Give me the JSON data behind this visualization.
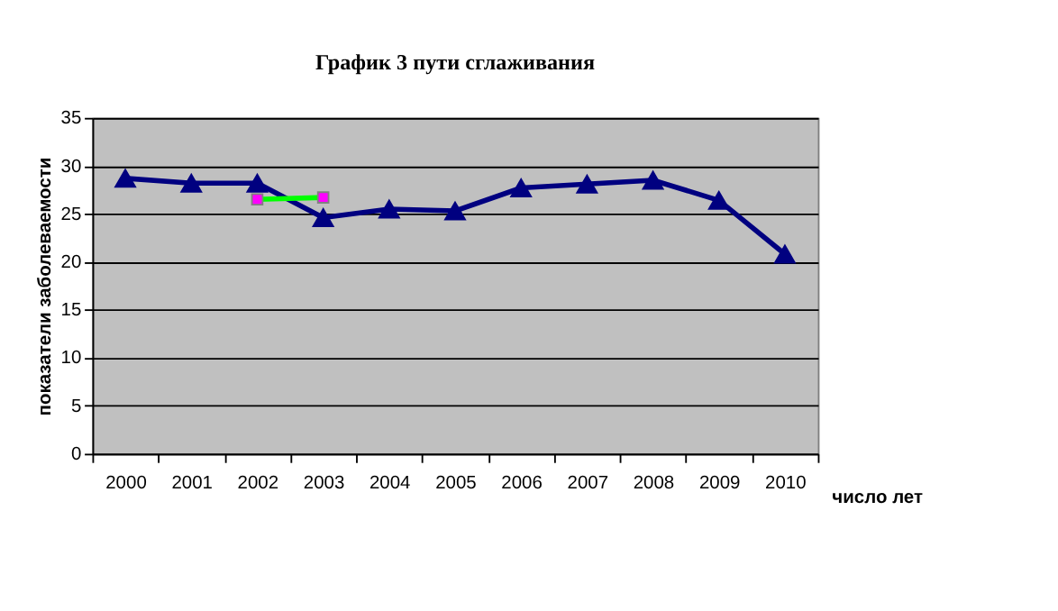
{
  "chart_data": {
    "type": "line",
    "title": "График 3 пути сглаживания",
    "xlabel": "число лет",
    "ylabel": "показатели заболеваемости",
    "categories": [
      "2000",
      "2001",
      "2002",
      "2003",
      "2004",
      "2005",
      "2006",
      "2007",
      "2008",
      "2009",
      "2010"
    ],
    "series": [
      {
        "color": "#000080",
        "marker": "triangle",
        "values": [
          28.7,
          28.2,
          28.2,
          24.6,
          25.5,
          25.3,
          27.7,
          28.1,
          28.5,
          26.4,
          20.8
        ]
      },
      {
        "color": "#00ff00",
        "marker": "square",
        "values": [
          null,
          null,
          26.5,
          26.7,
          null,
          null,
          null,
          null,
          null,
          null,
          null
        ]
      }
    ],
    "ylim": [
      0,
      35
    ],
    "yticks": [
      0,
      5,
      10,
      15,
      20,
      25,
      30,
      35
    ],
    "grid": "y"
  }
}
